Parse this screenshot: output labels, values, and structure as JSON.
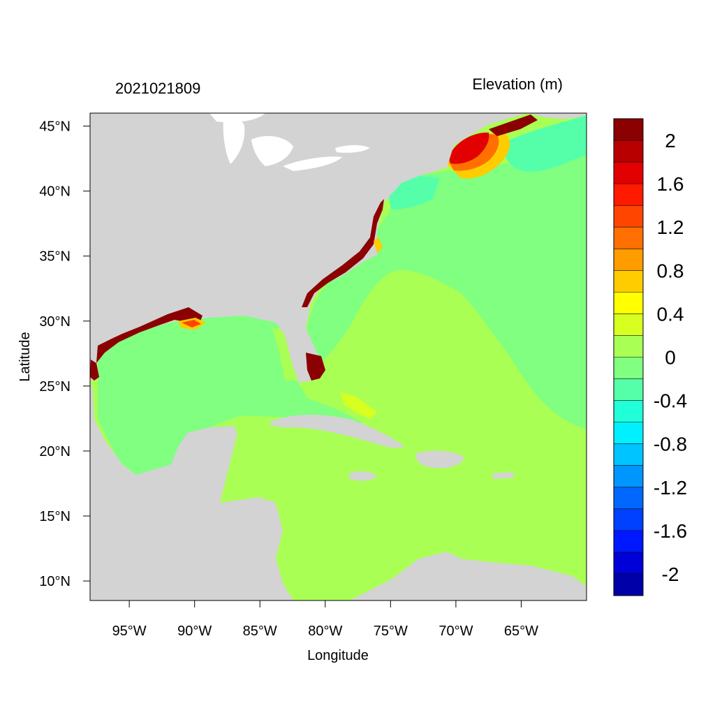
{
  "header": {
    "date_code": "2021021809",
    "variable_label": "Elevation (m)"
  },
  "axes": {
    "x_label": "Longitude",
    "y_label": "Latitude",
    "x_ticks": [
      "95°W",
      "90°W",
      "85°W",
      "80°W",
      "75°W",
      "70°W",
      "65°W"
    ],
    "x_tick_values": [
      -95,
      -90,
      -85,
      -80,
      -75,
      -70,
      -65
    ],
    "y_ticks": [
      "10°N",
      "15°N",
      "20°N",
      "25°N",
      "30°N",
      "35°N",
      "40°N",
      "45°N"
    ],
    "y_tick_values": [
      10,
      15,
      20,
      25,
      30,
      35,
      40,
      45
    ],
    "lon_range": [
      -98,
      -60
    ],
    "lat_range": [
      8.5,
      46
    ]
  },
  "colorbar": {
    "levels": [
      "2",
      "1.6",
      "1.2",
      "0.8",
      "0.4",
      "0",
      "-0.4",
      "-0.8",
      "-1.2",
      "-1.6",
      "-2"
    ],
    "colors": [
      "#8b0000",
      "#b80000",
      "#e30000",
      "#ff1a00",
      "#ff4500",
      "#ff7000",
      "#ff9c00",
      "#ffcc00",
      "#ffff00",
      "#d7ff20",
      "#aaff55",
      "#80ff80",
      "#55ffaa",
      "#20ffd8",
      "#00f0ff",
      "#00c4ff",
      "#0096ff",
      "#0068ff",
      "#0040ff",
      "#0018ff",
      "#0000d8",
      "#0000a8"
    ]
  },
  "map_colors": {
    "land": "#d3d3d3",
    "water_zero": "#aaff55",
    "water_neg": "#80ff80",
    "surge_high": "#8b0000"
  }
}
